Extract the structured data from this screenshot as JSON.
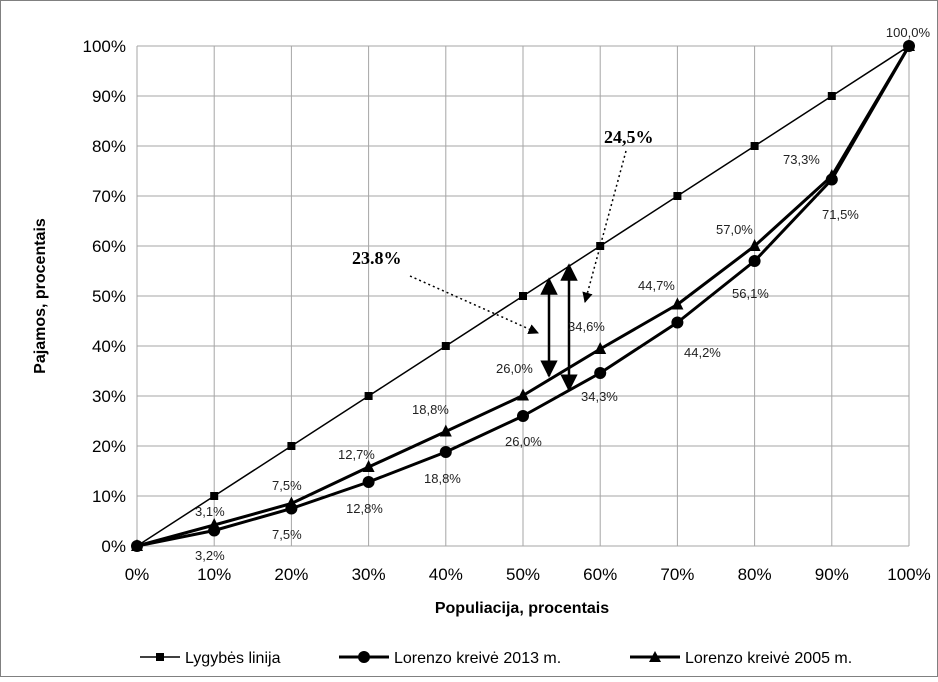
{
  "chart_data": {
    "type": "line",
    "xlabel": "Populiacija, procentais",
    "ylabel": "Pajamos, procentais",
    "x": [
      0,
      10,
      20,
      30,
      40,
      50,
      60,
      70,
      80,
      90,
      100
    ],
    "xlim": [
      0,
      100
    ],
    "ylim": [
      0,
      100
    ],
    "x_tick_labels": [
      "0%",
      "10%",
      "20%",
      "30%",
      "40%",
      "50%",
      "60%",
      "70%",
      "80%",
      "90%",
      "100%"
    ],
    "y_tick_labels": [
      "0%",
      "10%",
      "20%",
      "30%",
      "40%",
      "50%",
      "60%",
      "70%",
      "80%",
      "90%",
      "100%"
    ],
    "grid": true,
    "legend_position": "bottom",
    "series": [
      {
        "name": "Lygybės linija",
        "marker": "square",
        "values": [
          0,
          10,
          20,
          30,
          40,
          50,
          60,
          70,
          80,
          90,
          100
        ]
      },
      {
        "name": "Lorenzo kreivė 2013 m.",
        "marker": "circle",
        "values": [
          0,
          3.1,
          7.5,
          12.8,
          18.8,
          26.0,
          34.6,
          44.7,
          57.0,
          73.3,
          100.0
        ]
      },
      {
        "name": "Lorenzo kreivė 2005 m.",
        "marker": "triangle",
        "values": [
          0,
          4.2,
          8.5,
          15.8,
          22.9,
          30.1,
          39.4,
          48.3,
          60.0,
          74.0,
          100.0
        ]
      }
    ],
    "data_labels": [
      {
        "text": "100,0%"
      },
      {
        "text": "3,1%"
      },
      {
        "text": "3,2%"
      },
      {
        "text": "7,5%"
      },
      {
        "text": "7,5%"
      },
      {
        "text": "12,7%"
      },
      {
        "text": "12,8%"
      },
      {
        "text": "18,8%"
      },
      {
        "text": "18,8%"
      },
      {
        "text": "26,0%"
      },
      {
        "text": "26,0%"
      },
      {
        "text": "34,6%"
      },
      {
        "text": "34,3%"
      },
      {
        "text": "44,7%"
      },
      {
        "text": "44,2%"
      },
      {
        "text": "57,0%"
      },
      {
        "text": "56,1%"
      },
      {
        "text": "73,3%"
      },
      {
        "text": "71,5%"
      }
    ],
    "annotations": [
      {
        "text": "23.8%"
      },
      {
        "text": "24,5%"
      }
    ]
  },
  "colors": {
    "line": "#000000",
    "grid": "#a6a6a6",
    "frame": "#808080"
  }
}
